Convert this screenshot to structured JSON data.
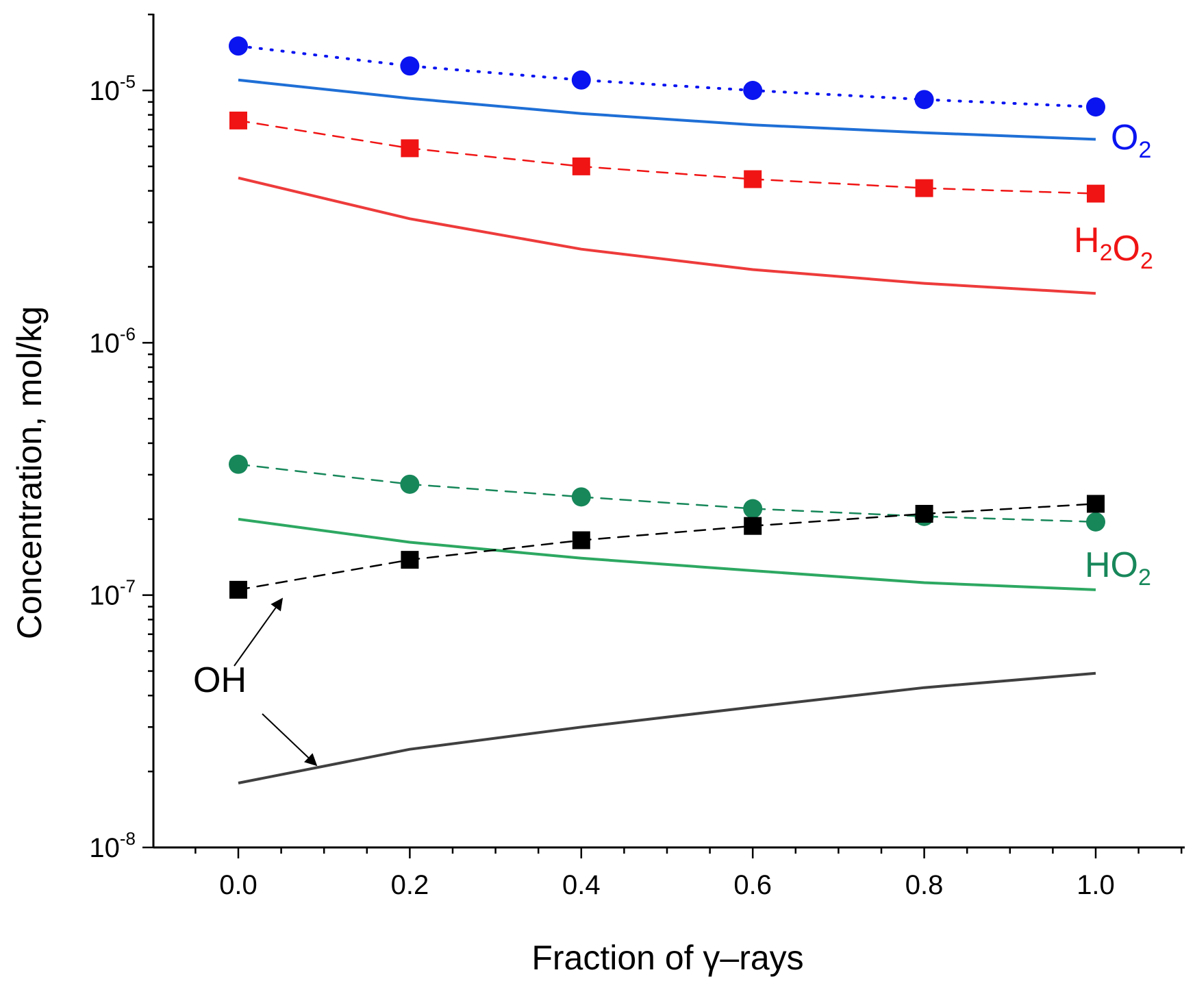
{
  "chart_data": {
    "type": "line",
    "title": "",
    "xlabel": "Fraction of γ–rays",
    "ylabel": "Concentration, mol/kg",
    "xlim": [
      -0.1,
      1.1
    ],
    "ylim": [
      1e-08,
      2e-05
    ],
    "yscale": "log",
    "x_ticks": [
      "0.0",
      "0.2",
      "0.4",
      "0.6",
      "0.8",
      "1.0"
    ],
    "y_ticks": [
      {
        "value": 1e-08,
        "base": "10",
        "exp": "-8"
      },
      {
        "value": 1e-07,
        "base": "10",
        "exp": "-7"
      },
      {
        "value": 1e-06,
        "base": "10",
        "exp": "-6"
      },
      {
        "value": 1e-05,
        "base": "10",
        "exp": "-5"
      }
    ],
    "x": [
      0.0,
      0.2,
      0.4,
      0.6,
      0.8,
      1.0
    ],
    "series": [
      {
        "name": "O2 (measured)",
        "kind": "markers",
        "marker": "circle",
        "line": "dotted",
        "color": "#0a14f0",
        "values": [
          1.5e-05,
          1.25e-05,
          1.1e-05,
          1e-05,
          9.2e-06,
          8.6e-06
        ]
      },
      {
        "name": "O2 (calculated)",
        "kind": "line",
        "color": "#1f6fd6",
        "values": [
          1.1e-05,
          9.3e-06,
          8.1e-06,
          7.3e-06,
          6.8e-06,
          6.4e-06
        ]
      },
      {
        "name": "H2O2 (measured)",
        "kind": "markers",
        "marker": "square",
        "line": "dashed",
        "color": "#f01414",
        "values": [
          7.6e-06,
          5.9e-06,
          5e-06,
          4.45e-06,
          4.1e-06,
          3.9e-06
        ]
      },
      {
        "name": "H2O2 (calculated)",
        "kind": "line",
        "color": "#ee3b3b",
        "values": [
          4.5e-06,
          3.1e-06,
          2.35e-06,
          1.95e-06,
          1.72e-06,
          1.57e-06
        ]
      },
      {
        "name": "HO2 (measured)",
        "kind": "markers",
        "marker": "circle",
        "line": "dashed",
        "color": "#17875a",
        "values": [
          3.3e-07,
          2.75e-07,
          2.45e-07,
          2.2e-07,
          2.05e-07,
          1.95e-07
        ]
      },
      {
        "name": "HO2 (calculated)",
        "kind": "line",
        "color": "#2da862",
        "values": [
          2e-07,
          1.62e-07,
          1.4e-07,
          1.25e-07,
          1.12e-07,
          1.05e-07
        ]
      },
      {
        "name": "OH (measured)",
        "kind": "markers",
        "marker": "square",
        "line": "dashed",
        "color": "#000000",
        "values": [
          1.05e-07,
          1.38e-07,
          1.65e-07,
          1.88e-07,
          2.1e-07,
          2.3e-07
        ]
      },
      {
        "name": "OH (calculated)",
        "kind": "line",
        "color": "#404040",
        "values": [
          1.8e-08,
          2.45e-08,
          3e-08,
          3.6e-08,
          4.3e-08,
          4.9e-08
        ]
      }
    ],
    "annotations": [
      {
        "id": "o2",
        "text": "O",
        "sub": "2",
        "color": "#0a14f0"
      },
      {
        "id": "h2o2",
        "parts": [
          [
            "H",
            "2"
          ],
          [
            "O",
            "2"
          ]
        ],
        "color": "#f01414"
      },
      {
        "id": "ho2",
        "text": "HO",
        "sub": "2",
        "color": "#17875a"
      },
      {
        "id": "oh",
        "text": "OH",
        "color": "#000000"
      }
    ]
  }
}
